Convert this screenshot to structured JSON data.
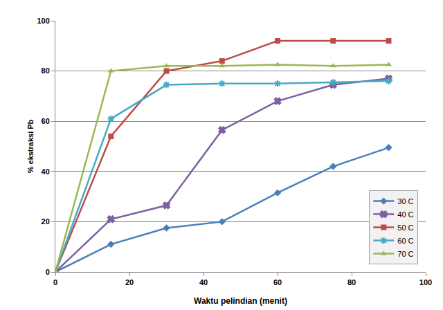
{
  "chart_data": {
    "type": "line",
    "x_label": "Waktu pelindian (menit)",
    "y_label": "% ekstraksi Pb",
    "x": [
      0,
      15,
      30,
      45,
      60,
      75,
      90
    ],
    "series": [
      {
        "name": "30 C",
        "color": "#4a7ebb",
        "marker": "diamond",
        "values": [
          0,
          11,
          17.5,
          20,
          31.5,
          42,
          49.5
        ]
      },
      {
        "name": "40 C",
        "color": "#7d60a0",
        "marker": "x",
        "values": [
          0,
          21,
          26.5,
          56.5,
          68,
          74.5,
          77
        ]
      },
      {
        "name": "50 C",
        "color": "#be4b48",
        "marker": "square",
        "values": [
          0,
          54,
          80,
          84,
          92,
          92,
          92
        ]
      },
      {
        "name": "60 C",
        "color": "#46aac5",
        "marker": "asterisk-open",
        "values": [
          0,
          61,
          74.5,
          75,
          75,
          75.5,
          76
        ]
      },
      {
        "name": "70 C",
        "color": "#98b954",
        "marker": "triangle-up",
        "values": [
          0,
          80,
          82,
          82,
          82.5,
          82,
          82.5
        ]
      }
    ],
    "xlim": [
      0,
      100
    ],
    "xticks": [
      0,
      20,
      40,
      60,
      80,
      100
    ],
    "ylim": [
      0,
      100
    ],
    "yticks": [
      0,
      20,
      40,
      60,
      80,
      100
    ],
    "grid": "y",
    "legend": "lower right"
  }
}
